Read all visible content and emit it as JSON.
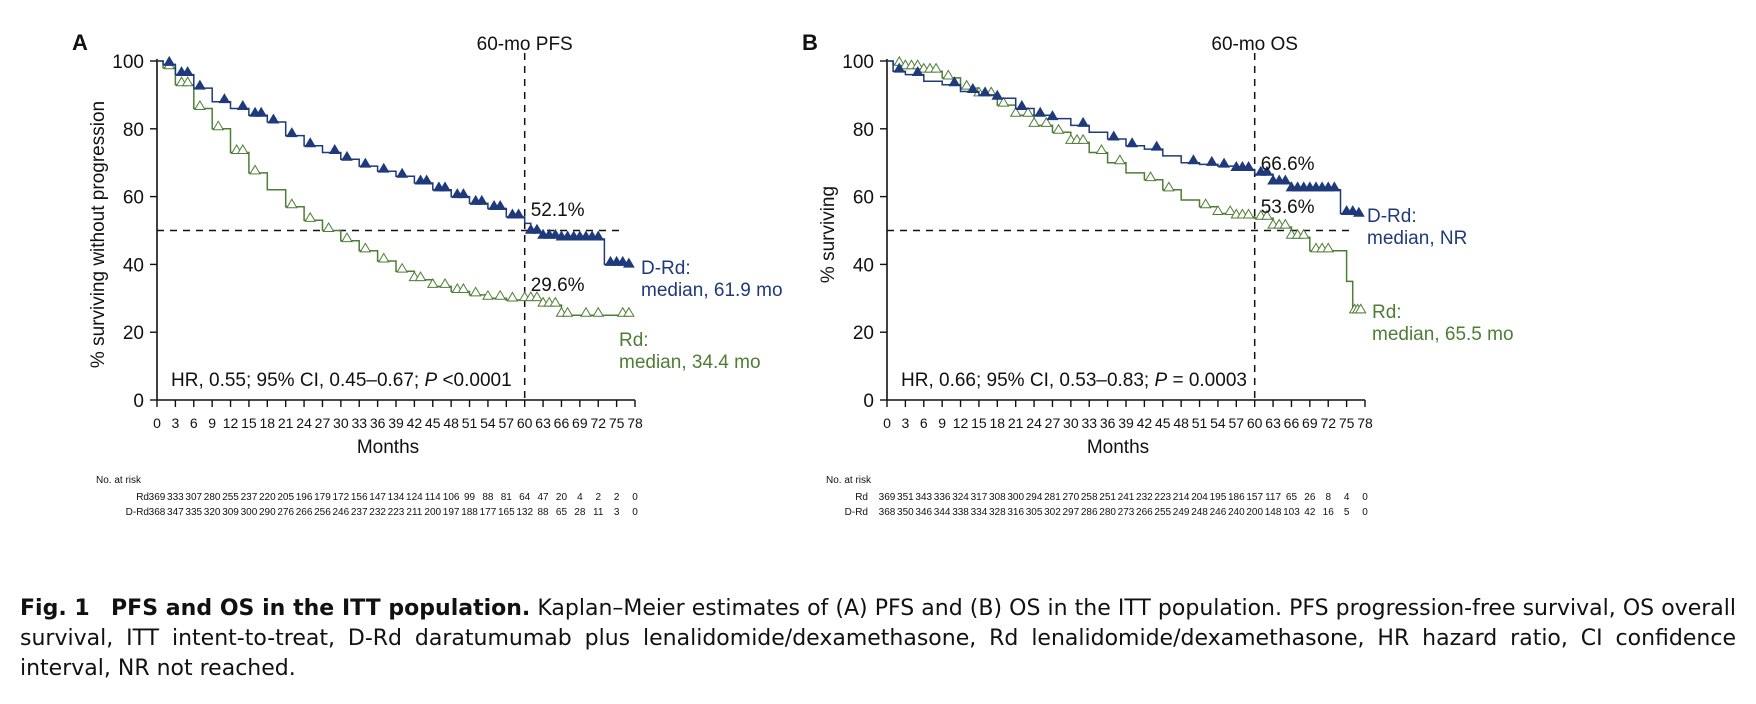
{
  "figure": {
    "caption": {
      "label": "Fig. 1",
      "title": "PFS and OS in the ITT population.",
      "text": "Kaplan–Meier estimates of (A) PFS and (B) OS in the ITT population. PFS progression-free survival, OS overall survival, ITT intent-to-treat, D-Rd daratumumab plus lenalidomide/dexamethasone, Rd lenalidomide/dexamethasone, HR hazard ratio, CI confidence interval, NR not reached."
    }
  },
  "colors": {
    "drd": "#1f3a7a",
    "rd": "#4e7d35",
    "axis": "#111111"
  },
  "chart_data": [
    {
      "type": "line",
      "panel": "A",
      "xlabel": "Months",
      "ylabel": "% surviving without progression",
      "xlim": [
        0,
        78
      ],
      "ylim": [
        0,
        100
      ],
      "x_ticks": [
        0,
        3,
        6,
        9,
        12,
        15,
        18,
        21,
        24,
        27,
        30,
        33,
        36,
        39,
        42,
        45,
        48,
        51,
        54,
        57,
        60,
        63,
        66,
        69,
        72,
        75,
        78
      ],
      "y_ticks": [
        0,
        20,
        40,
        60,
        80,
        100
      ],
      "vline": {
        "x": 60,
        "label": "60-mo PFS"
      },
      "hline": {
        "y": 50
      },
      "stat_text": {
        "pre": "HR, 0.55; 95% CI, 0.45–0.67; ",
        "p": "P",
        "post": " <0.0001"
      },
      "point_labels": [
        {
          "series": "D-Rd",
          "x": 60,
          "y": 52.1,
          "text": "52.1%"
        },
        {
          "series": "Rd",
          "x": 60,
          "y": 29.6,
          "text": "29.6%"
        }
      ],
      "series": [
        {
          "name": "D-Rd",
          "median_label": [
            "D-Rd:",
            "median, 61.9 mo"
          ],
          "marker": "filled-triangle",
          "points": [
            [
              0,
              100
            ],
            [
              1,
              99
            ],
            [
              3,
              96
            ],
            [
              6,
              92
            ],
            [
              9,
              88
            ],
            [
              12,
              86
            ],
            [
              15,
              84
            ],
            [
              18,
              82
            ],
            [
              21,
              78
            ],
            [
              24,
              75
            ],
            [
              27,
              73
            ],
            [
              30,
              71
            ],
            [
              33,
              69
            ],
            [
              36,
              67.5
            ],
            [
              39,
              66
            ],
            [
              42,
              64
            ],
            [
              45,
              62
            ],
            [
              48,
              60
            ],
            [
              51,
              58
            ],
            [
              54,
              56.5
            ],
            [
              57,
              54
            ],
            [
              60,
              52.1
            ],
            [
              61,
              49.5
            ],
            [
              63,
              48
            ],
            [
              66,
              47.5
            ],
            [
              69,
              47.5
            ],
            [
              73,
              47.5
            ],
            [
              73,
              40
            ],
            [
              77,
              39.5
            ]
          ],
          "censor": [
            2,
            4,
            5,
            7,
            11,
            14,
            16,
            17,
            19,
            22,
            25,
            29,
            31,
            34,
            37,
            40,
            43,
            44,
            46,
            47,
            49,
            50,
            52,
            53,
            55,
            56,
            58,
            59,
            61,
            62,
            63,
            64,
            65,
            66,
            67,
            68,
            69,
            70,
            71,
            72,
            74,
            75,
            76,
            77
          ]
        },
        {
          "name": "Rd",
          "median_label": [
            "Rd:",
            "median, 34.4 mo"
          ],
          "marker": "open-triangle",
          "points": [
            [
              0,
              100
            ],
            [
              1,
              98
            ],
            [
              3,
              93
            ],
            [
              6,
              86
            ],
            [
              9,
              80
            ],
            [
              12,
              73
            ],
            [
              15,
              67
            ],
            [
              18,
              62
            ],
            [
              21,
              57
            ],
            [
              24,
              53
            ],
            [
              27,
              50
            ],
            [
              30,
              47
            ],
            [
              33,
              44
            ],
            [
              36,
              41
            ],
            [
              39,
              38
            ],
            [
              42,
              35.5
            ],
            [
              45,
              33.5
            ],
            [
              48,
              32
            ],
            [
              51,
              31
            ],
            [
              54,
              30
            ],
            [
              57,
              29.5
            ],
            [
              60,
              29.6
            ],
            [
              63,
              28
            ],
            [
              66,
              25
            ],
            [
              69,
              25
            ],
            [
              72,
              25
            ],
            [
              77,
              25
            ]
          ],
          "censor": [
            2,
            4,
            5,
            7,
            10,
            13,
            14,
            16,
            22,
            25,
            28,
            31,
            34,
            37,
            40,
            42,
            43,
            45,
            47,
            49,
            50,
            52,
            54,
            56,
            58,
            60,
            61,
            62,
            63,
            64,
            65,
            66,
            67,
            70,
            72,
            76,
            77
          ]
        }
      ],
      "risk_table": {
        "heading": "No. at risk",
        "rows": [
          {
            "label": "Rd",
            "values": [
              369,
              333,
              307,
              280,
              255,
              237,
              220,
              205,
              196,
              179,
              172,
              156,
              147,
              134,
              124,
              114,
              106,
              99,
              88,
              81,
              64,
              47,
              20,
              4,
              2,
              2,
              0
            ]
          },
          {
            "label": "D-Rd",
            "values": [
              368,
              347,
              335,
              320,
              309,
              300,
              290,
              276,
              266,
              256,
              246,
              237,
              232,
              223,
              211,
              200,
              197,
              188,
              177,
              165,
              132,
              88,
              65,
              28,
              11,
              3,
              0
            ]
          }
        ]
      }
    },
    {
      "type": "line",
      "panel": "B",
      "xlabel": "Months",
      "ylabel": "% surviving",
      "xlim": [
        0,
        78
      ],
      "ylim": [
        0,
        100
      ],
      "x_ticks": [
        0,
        3,
        6,
        9,
        12,
        15,
        18,
        21,
        24,
        27,
        30,
        33,
        36,
        39,
        42,
        45,
        48,
        51,
        54,
        57,
        60,
        63,
        66,
        69,
        72,
        75,
        78
      ],
      "y_ticks": [
        0,
        20,
        40,
        60,
        80,
        100
      ],
      "vline": {
        "x": 60,
        "label": "60-mo OS"
      },
      "hline": {
        "y": 50
      },
      "stat_text": {
        "pre": "HR, 0.66; 95% CI, 0.53–0.83; ",
        "p": "P",
        "post": " = 0.0003"
      },
      "point_labels": [
        {
          "series": "D-Rd",
          "x": 60,
          "y": 66.6,
          "text": "66.6%"
        },
        {
          "series": "Rd",
          "x": 60,
          "y": 53.6,
          "text": "53.6%"
        }
      ],
      "series": [
        {
          "name": "D-Rd",
          "median_label": [
            "D-Rd:",
            "median, NR"
          ],
          "marker": "filled-triangle",
          "points": [
            [
              0,
              100
            ],
            [
              1,
              97
            ],
            [
              3,
              96
            ],
            [
              6,
              94
            ],
            [
              9,
              93
            ],
            [
              12,
              91
            ],
            [
              15,
              90
            ],
            [
              18,
              89
            ],
            [
              21,
              86
            ],
            [
              24,
              84
            ],
            [
              27,
              83
            ],
            [
              30,
              81
            ],
            [
              33,
              79
            ],
            [
              36,
              77
            ],
            [
              39,
              75
            ],
            [
              42,
              74
            ],
            [
              45,
              72
            ],
            [
              48,
              70
            ],
            [
              51,
              69.5
            ],
            [
              54,
              69
            ],
            [
              57,
              68
            ],
            [
              60,
              66.6
            ],
            [
              63,
              64
            ],
            [
              66,
              62
            ],
            [
              69,
              62
            ],
            [
              74,
              62
            ],
            [
              74,
              55
            ],
            [
              77,
              54.5
            ]
          ],
          "censor": [
            2,
            5,
            11,
            14,
            16,
            18,
            22,
            25,
            27,
            32,
            37,
            40,
            44,
            50,
            53,
            55,
            57,
            58,
            59,
            61,
            62,
            63,
            64,
            65,
            66,
            67,
            68,
            69,
            70,
            71,
            72,
            73,
            75,
            76,
            77
          ]
        },
        {
          "name": "Rd",
          "median_label": [
            "Rd:",
            "median, 65.5 mo"
          ],
          "marker": "open-triangle",
          "points": [
            [
              0,
              100
            ],
            [
              1,
              99
            ],
            [
              3,
              98
            ],
            [
              6,
              97
            ],
            [
              9,
              95
            ],
            [
              12,
              92
            ],
            [
              15,
              90
            ],
            [
              18,
              87
            ],
            [
              21,
              84
            ],
            [
              24,
              81
            ],
            [
              27,
              79
            ],
            [
              30,
              76
            ],
            [
              33,
              73
            ],
            [
              36,
              70
            ],
            [
              39,
              67
            ],
            [
              42,
              65
            ],
            [
              45,
              62
            ],
            [
              48,
              59
            ],
            [
              51,
              57
            ],
            [
              54,
              55
            ],
            [
              57,
              54
            ],
            [
              60,
              53.6
            ],
            [
              63,
              51
            ],
            [
              66,
              48
            ],
            [
              69,
              44
            ],
            [
              72,
              44
            ],
            [
              75,
              44
            ],
            [
              75,
              35
            ],
            [
              76,
              35
            ],
            [
              76,
              26
            ],
            [
              77,
              26
            ]
          ],
          "censor": [
            2,
            3,
            4,
            5,
            6,
            7,
            8,
            10,
            13,
            15,
            17,
            19,
            21,
            23,
            24,
            26,
            28,
            30,
            31,
            32,
            35,
            38,
            43,
            46,
            52,
            54,
            56,
            57,
            58,
            59,
            61,
            62,
            63,
            64,
            65,
            66,
            67,
            68,
            70,
            71,
            72,
            76.3,
            76.8,
            77.3
          ]
        }
      ],
      "risk_table": {
        "heading": "No. at risk",
        "rows": [
          {
            "label": "Rd",
            "values": [
              369,
              351,
              343,
              336,
              324,
              317,
              308,
              300,
              294,
              281,
              270,
              258,
              251,
              241,
              232,
              223,
              214,
              204,
              195,
              186,
              157,
              117,
              65,
              26,
              8,
              4,
              0
            ]
          },
          {
            "label": "D-Rd",
            "values": [
              368,
              350,
              346,
              344,
              338,
              334,
              328,
              316,
              305,
              302,
              297,
              286,
              280,
              273,
              266,
              255,
              249,
              248,
              246,
              240,
              200,
              148,
              103,
              42,
              16,
              5,
              0
            ]
          }
        ]
      }
    }
  ]
}
